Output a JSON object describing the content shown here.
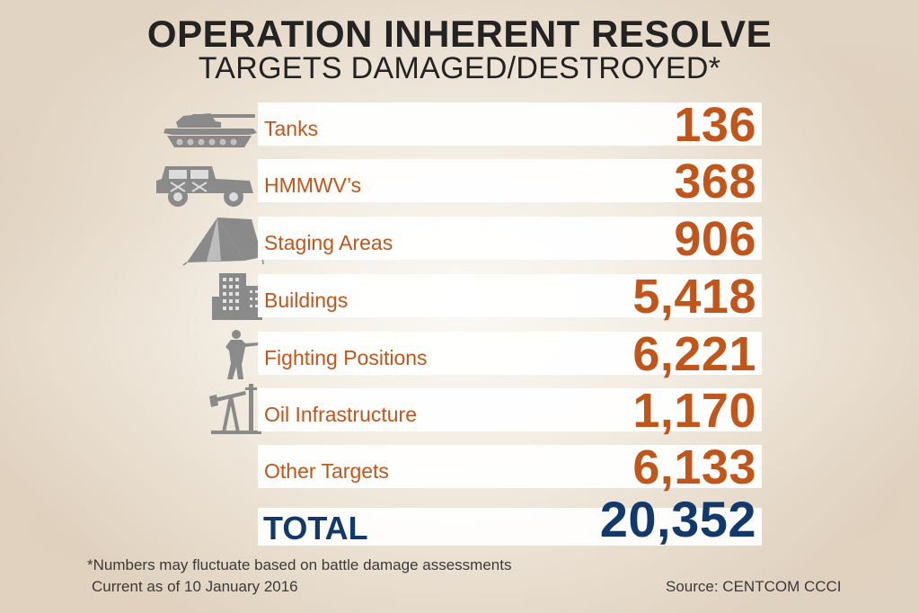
{
  "header": {
    "title": "OPERATION INHERENT RESOLVE",
    "subtitle": "TARGETS DAMAGED/DESTROYED*"
  },
  "rows": [
    {
      "label": "Tanks",
      "value": "136",
      "icon": "tank-icon"
    },
    {
      "label": "HMMWV’s",
      "value": "368",
      "icon": "humvee-icon"
    },
    {
      "label": "Staging Areas",
      "value": "906",
      "icon": "tent-icon"
    },
    {
      "label": "Buildings",
      "value": "5,418",
      "icon": "building-icon"
    },
    {
      "label": "Fighting Positions",
      "value": "6,221",
      "icon": "soldier-icon"
    },
    {
      "label": "Oil Infrastructure",
      "value": "1,170",
      "icon": "oil-pump-icon"
    },
    {
      "label": "Other Targets",
      "value": "6,133",
      "icon": ""
    }
  ],
  "total": {
    "label": "TOTAL",
    "value": "20,352"
  },
  "footer": {
    "footnote": "*Numbers may fluctuate based on battle damage assessments",
    "as_of": "Current as of 10 January 2016",
    "source": "Source: CENTCOM CCCI"
  },
  "colors": {
    "item_accent": "#c0561a",
    "total_accent": "#12396b",
    "title": "#232323",
    "icon_gray": "#8a8a8a"
  }
}
